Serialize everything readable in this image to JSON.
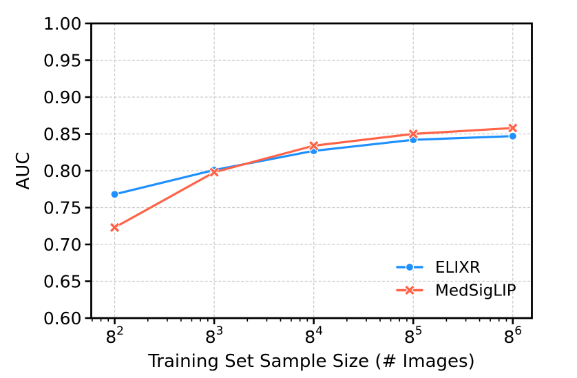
{
  "chart_data": {
    "type": "line",
    "title": "",
    "xlabel": "Training Set Sample Size (# Images)",
    "ylabel": "AUC",
    "x_scale": "log",
    "x_log_base": 8,
    "x_tick_base_symbol": "8",
    "x_tick_exponents": [
      2,
      3,
      4,
      5,
      6
    ],
    "categories": [
      "8^2",
      "8^3",
      "8^4",
      "8^5",
      "8^6"
    ],
    "series": [
      {
        "name": "ELIXR",
        "color": "#1E90FF",
        "marker": "circle",
        "values": [
          0.768,
          0.801,
          0.827,
          0.842,
          0.847
        ]
      },
      {
        "name": "MedSigLIP",
        "color": "#FF6347",
        "marker": "x",
        "values": [
          0.723,
          0.798,
          0.834,
          0.85,
          0.858
        ]
      }
    ],
    "ylim": [
      0.6,
      1.0
    ],
    "ytick_step": 0.05,
    "ytick_labels": [
      "0.60",
      "0.65",
      "0.70",
      "0.75",
      "0.80",
      "0.85",
      "0.90",
      "0.95",
      "1.00"
    ],
    "grid": true,
    "grid_style": "dashed",
    "legend_position": "lower right",
    "legend_frame": false,
    "colors": {
      "grid": "#c9c9c9",
      "axis": "#000000",
      "text": "#000000",
      "background": "#ffffff",
      "marker_edge": "#ffffff"
    }
  }
}
